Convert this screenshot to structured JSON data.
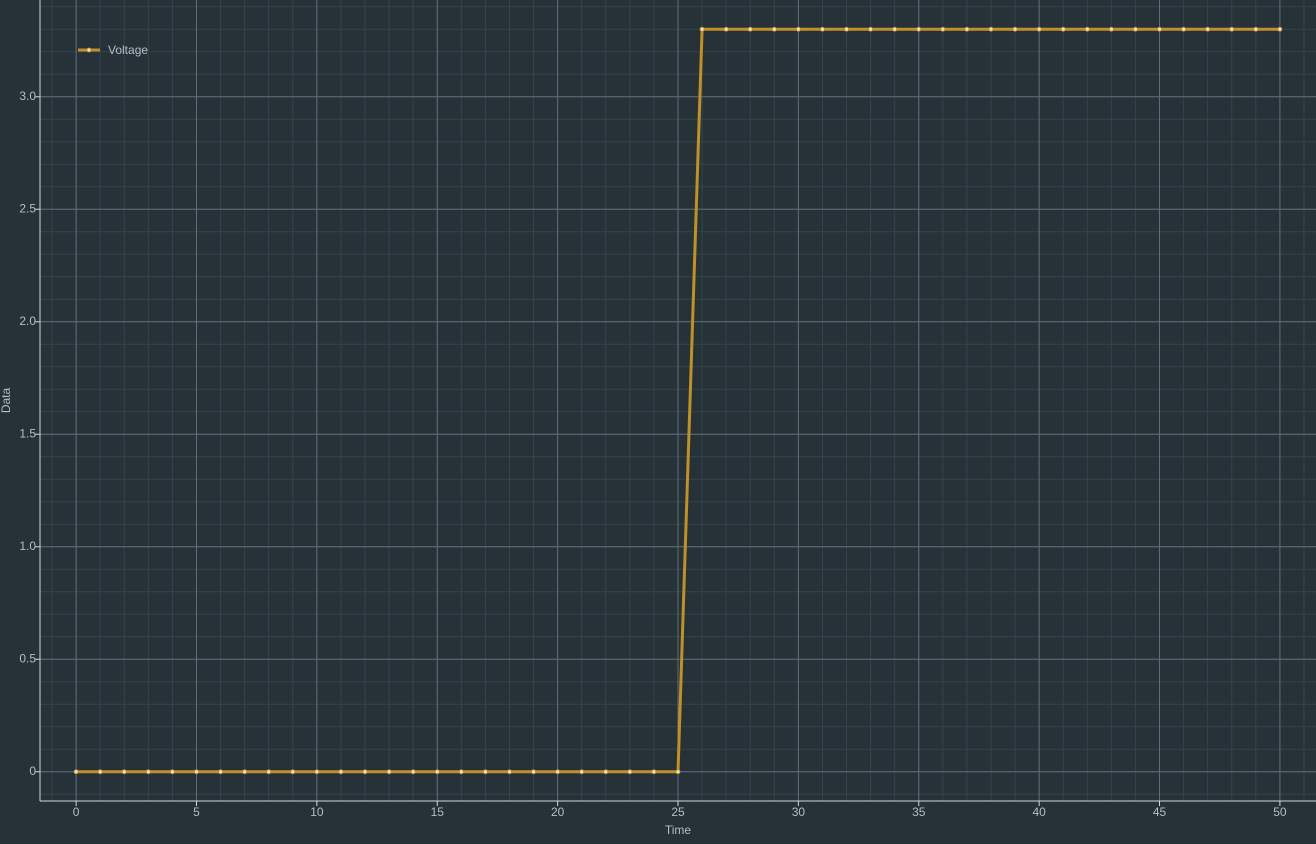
{
  "theme": {
    "background": "#263238",
    "major_grid": "#5f6f77",
    "minor_grid": "#34444c",
    "axis_line": "#cfd8dc",
    "text": "#b0bec5",
    "series_color": "#c0902a",
    "marker_fill": "#e8e0c8"
  },
  "chart_data": {
    "type": "line",
    "title": "",
    "xlabel": "Time",
    "ylabel": "Data",
    "xlim": [
      -1.5,
      51.5
    ],
    "ylim": [
      -0.13,
      3.43
    ],
    "x_ticks": [
      0,
      5,
      10,
      15,
      20,
      25,
      30,
      35,
      40,
      45,
      50
    ],
    "x_tick_labels": [
      "0",
      "5",
      "10",
      "15",
      "20",
      "25",
      "30",
      "35",
      "40",
      "45",
      "50"
    ],
    "y_ticks": [
      0,
      0.5,
      1.0,
      1.5,
      2.0,
      2.5,
      3.0
    ],
    "y_tick_labels": [
      "0",
      "0.5",
      "1.0",
      "1.5",
      "2.0",
      "2.5",
      "3.0"
    ],
    "x_minor_step": 1,
    "y_minor_step": 0.1,
    "grid": true,
    "legend": {
      "position": "top-left"
    },
    "series": [
      {
        "name": "Voltage",
        "marker": "circle",
        "x": [
          0,
          1,
          2,
          3,
          4,
          5,
          6,
          7,
          8,
          9,
          10,
          11,
          12,
          13,
          14,
          15,
          16,
          17,
          18,
          19,
          20,
          21,
          22,
          23,
          24,
          25,
          26,
          27,
          28,
          29,
          30,
          31,
          32,
          33,
          34,
          35,
          36,
          37,
          38,
          39,
          40,
          41,
          42,
          43,
          44,
          45,
          46,
          47,
          48,
          49,
          50
        ],
        "values": [
          0,
          0,
          0,
          0,
          0,
          0,
          0,
          0,
          0,
          0,
          0,
          0,
          0,
          0,
          0,
          0,
          0,
          0,
          0,
          0,
          0,
          0,
          0,
          0,
          0,
          0,
          3.3,
          3.3,
          3.3,
          3.3,
          3.3,
          3.3,
          3.3,
          3.3,
          3.3,
          3.3,
          3.3,
          3.3,
          3.3,
          3.3,
          3.3,
          3.3,
          3.3,
          3.3,
          3.3,
          3.3,
          3.3,
          3.3,
          3.3,
          3.3,
          3.3
        ]
      }
    ]
  }
}
